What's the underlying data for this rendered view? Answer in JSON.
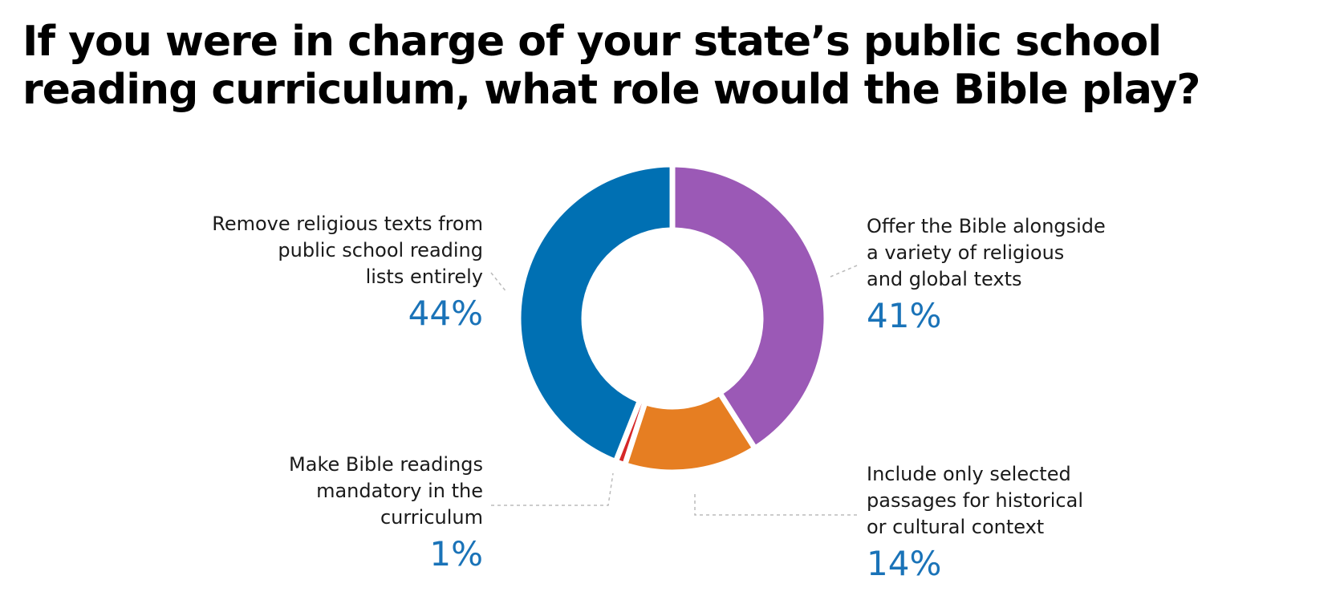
{
  "title": "If you were in charge of your state’s public school reading curriculum, what role would the Bible play?",
  "chart_data": {
    "type": "pie",
    "variant": "donut",
    "title": "If you were in charge of your state’s public school reading curriculum, what role would the Bible play?",
    "slices": [
      {
        "label": "Offer the Bible alongside\na variety of religious\nand global texts",
        "value": 41,
        "value_label": "41%",
        "color": "#9b59b6"
      },
      {
        "label": "Include only selected\npassages for historical\nor cultural context",
        "value": 14,
        "value_label": "14%",
        "color": "#e67e22"
      },
      {
        "label": "Make Bible readings\nmandatory in the\ncurriculum",
        "value": 1,
        "value_label": "1%",
        "color": "#d62728"
      },
      {
        "label": "Remove religious texts from\npublic school reading\nlists entirely",
        "value": 44,
        "value_label": "44%",
        "color": "#0070b3"
      }
    ],
    "percent_color": "#1a73b8",
    "leader_line_color": "#bbbbbb",
    "start_angle_deg": 0,
    "direction": "clockwise",
    "legend": "none"
  }
}
